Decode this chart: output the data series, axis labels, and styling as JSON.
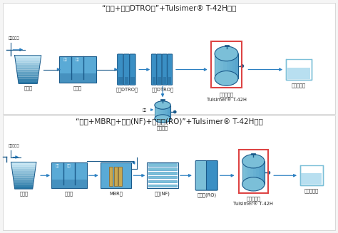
{
  "bg_color": "#f5f5f5",
  "title1": "“生化+双级DTRO膜”+Tulsimer® T-42H工艺",
  "title2": "“生化+MBR膜+纳滤(NF)+反渗透(RO)”+Tulsimer® T-42H工艺",
  "inlet_label": "垃圾溲滤液",
  "arrow_color": "#2a7fc1",
  "dark_blue": "#1a5a8a",
  "mid_blue": "#3a8fc4",
  "light_blue": "#7bbfd8",
  "lighter_blue": "#b8dff0",
  "water_blue": "#5aaad6",
  "gradient_top": "#c8e8f5",
  "gradient_bot": "#1a6fa0",
  "highlight_border": "#d44",
  "text_color": "#222222",
  "label_color": "#333333",
  "title_fs": 7.5,
  "label_fs": 4.8
}
